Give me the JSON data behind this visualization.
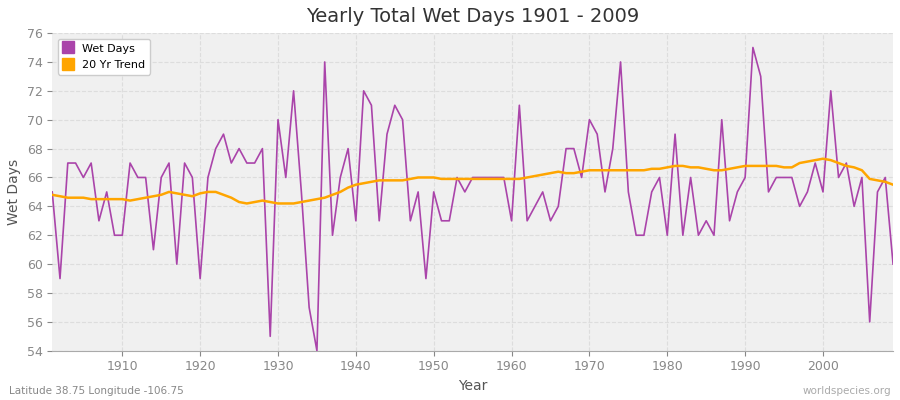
{
  "title": "Yearly Total Wet Days 1901 - 2009",
  "xlabel": "Year",
  "ylabel": "Wet Days",
  "xlim": [
    1901,
    2009
  ],
  "ylim": [
    54,
    76
  ],
  "yticks": [
    54,
    56,
    58,
    60,
    62,
    64,
    66,
    68,
    70,
    72,
    74,
    76
  ],
  "xticks": [
    1910,
    1920,
    1930,
    1940,
    1950,
    1960,
    1970,
    1980,
    1990,
    2000
  ],
  "wet_days_color": "#AA44AA",
  "trend_color": "#FFA500",
  "fig_bg_color": "#FFFFFF",
  "plot_bg_color": "#F0F0F0",
  "grid_color": "#DDDDDD",
  "subtitle": "Latitude 38.75 Longitude -106.75",
  "watermark": "worldspecies.org",
  "years": [
    1901,
    1902,
    1903,
    1904,
    1905,
    1906,
    1907,
    1908,
    1909,
    1910,
    1911,
    1912,
    1913,
    1914,
    1915,
    1916,
    1917,
    1918,
    1919,
    1920,
    1921,
    1922,
    1923,
    1924,
    1925,
    1926,
    1927,
    1928,
    1929,
    1930,
    1931,
    1932,
    1933,
    1934,
    1935,
    1936,
    1937,
    1938,
    1939,
    1940,
    1941,
    1942,
    1943,
    1944,
    1945,
    1946,
    1947,
    1948,
    1949,
    1950,
    1951,
    1952,
    1953,
    1954,
    1955,
    1956,
    1957,
    1958,
    1959,
    1960,
    1961,
    1962,
    1963,
    1964,
    1965,
    1966,
    1967,
    1968,
    1969,
    1970,
    1971,
    1972,
    1973,
    1974,
    1975,
    1976,
    1977,
    1978,
    1979,
    1980,
    1981,
    1982,
    1983,
    1984,
    1985,
    1986,
    1987,
    1988,
    1989,
    1990,
    1991,
    1992,
    1993,
    1994,
    1995,
    1996,
    1997,
    1998,
    1999,
    2000,
    2001,
    2002,
    2003,
    2004,
    2005,
    2006,
    2007,
    2008,
    2009
  ],
  "wet_days": [
    65,
    59,
    67,
    67,
    66,
    67,
    63,
    65,
    62,
    62,
    67,
    66,
    66,
    61,
    66,
    67,
    60,
    67,
    66,
    59,
    66,
    68,
    69,
    67,
    68,
    67,
    67,
    68,
    55,
    70,
    66,
    72,
    65,
    57,
    54,
    74,
    62,
    66,
    68,
    63,
    72,
    71,
    63,
    69,
    71,
    70,
    63,
    65,
    59,
    65,
    63,
    63,
    66,
    65,
    66,
    66,
    66,
    66,
    66,
    63,
    71,
    63,
    64,
    65,
    63,
    64,
    68,
    68,
    66,
    70,
    69,
    65,
    68,
    74,
    65,
    62,
    62,
    65,
    66,
    62,
    69,
    62,
    66,
    62,
    63,
    62,
    70,
    63,
    65,
    66,
    75,
    73,
    65,
    66,
    66,
    66,
    64,
    65,
    67,
    65,
    72,
    66,
    67,
    64,
    66,
    56,
    65,
    66,
    60
  ],
  "trend_years": [
    1901,
    1902,
    1903,
    1904,
    1905,
    1906,
    1907,
    1908,
    1909,
    1910,
    1911,
    1912,
    1913,
    1914,
    1915,
    1916,
    1917,
    1918,
    1919,
    1920,
    1921,
    1922,
    1923,
    1924,
    1925,
    1926,
    1927,
    1928,
    1929,
    1930,
    1931,
    1932,
    1933,
    1934,
    1935,
    1936,
    1937,
    1938,
    1939,
    1940,
    1941,
    1942,
    1943,
    1944,
    1945,
    1946,
    1947,
    1948,
    1949,
    1950,
    1951,
    1952,
    1953,
    1954,
    1955,
    1956,
    1957,
    1958,
    1959,
    1960,
    1961,
    1962,
    1963,
    1964,
    1965,
    1966,
    1967,
    1968,
    1969,
    1970,
    1971,
    1972,
    1973,
    1974,
    1975,
    1976,
    1977,
    1978,
    1979,
    1980,
    1981,
    1982,
    1983,
    1984,
    1985,
    1986,
    1987,
    1988,
    1989,
    1990,
    1991,
    1992,
    1993,
    1994,
    1995,
    1996,
    1997,
    1998,
    1999,
    2000,
    2001,
    2002,
    2003,
    2004,
    2005,
    2006,
    2007,
    2008,
    2009
  ],
  "trend_values": [
    64.8,
    64.7,
    64.6,
    64.6,
    64.6,
    64.5,
    64.5,
    64.5,
    64.5,
    64.5,
    64.4,
    64.5,
    64.6,
    64.7,
    64.8,
    65.0,
    64.9,
    64.8,
    64.7,
    64.9,
    65.0,
    65.0,
    64.8,
    64.6,
    64.3,
    64.2,
    64.3,
    64.4,
    64.3,
    64.2,
    64.2,
    64.2,
    64.3,
    64.4,
    64.5,
    64.6,
    64.8,
    65.0,
    65.3,
    65.5,
    65.6,
    65.7,
    65.8,
    65.8,
    65.8,
    65.8,
    65.9,
    66.0,
    66.0,
    66.0,
    65.9,
    65.9,
    65.9,
    65.9,
    65.9,
    65.9,
    65.9,
    65.9,
    65.9,
    65.9,
    65.9,
    66.0,
    66.1,
    66.2,
    66.3,
    66.4,
    66.3,
    66.3,
    66.4,
    66.5,
    66.5,
    66.5,
    66.5,
    66.5,
    66.5,
    66.5,
    66.5,
    66.6,
    66.6,
    66.7,
    66.8,
    66.8,
    66.7,
    66.7,
    66.6,
    66.5,
    66.5,
    66.6,
    66.7,
    66.8,
    66.8,
    66.8,
    66.8,
    66.8,
    66.7,
    66.7,
    67.0,
    67.1,
    67.2,
    67.3,
    67.2,
    67.0,
    66.8,
    66.7,
    66.5,
    65.9,
    65.8,
    65.7,
    65.5
  ]
}
